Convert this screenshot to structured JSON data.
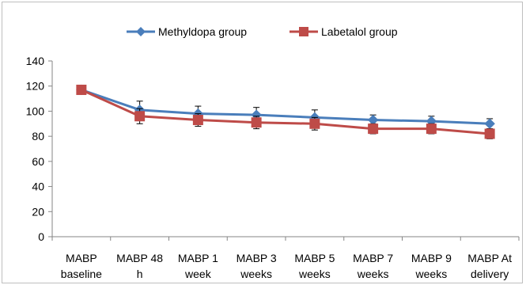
{
  "chart_data": {
    "type": "line",
    "categories": [
      [
        "MABP",
        "baseline"
      ],
      [
        "MABP 48",
        "h"
      ],
      [
        "MABP 1",
        "week"
      ],
      [
        "MABP 3",
        "weeks"
      ],
      [
        "MABP 5",
        "weeks"
      ],
      [
        "MABP 7",
        "weeks"
      ],
      [
        "MABP 9",
        "weeks"
      ],
      [
        "MABP At",
        "delivery"
      ]
    ],
    "series": [
      {
        "name": "Methyldopa group",
        "color": "#4a7ebb",
        "marker": "diamond",
        "values": [
          117,
          101,
          98,
          97,
          95,
          93,
          92,
          90
        ],
        "error": [
          2,
          7,
          6,
          6,
          6,
          4,
          4,
          4
        ]
      },
      {
        "name": "Labetalol group",
        "color": "#be4b48",
        "marker": "square",
        "values": [
          117,
          96,
          93,
          91,
          90,
          86,
          86,
          82
        ],
        "error": [
          2,
          6,
          5,
          5,
          5,
          4,
          4,
          4
        ]
      }
    ],
    "ylim": [
      0,
      140
    ],
    "yticks": [
      0,
      20,
      40,
      60,
      80,
      100,
      120,
      140
    ],
    "grid": false,
    "legend": "top-center",
    "title": "",
    "xlabel": "",
    "ylabel": ""
  }
}
